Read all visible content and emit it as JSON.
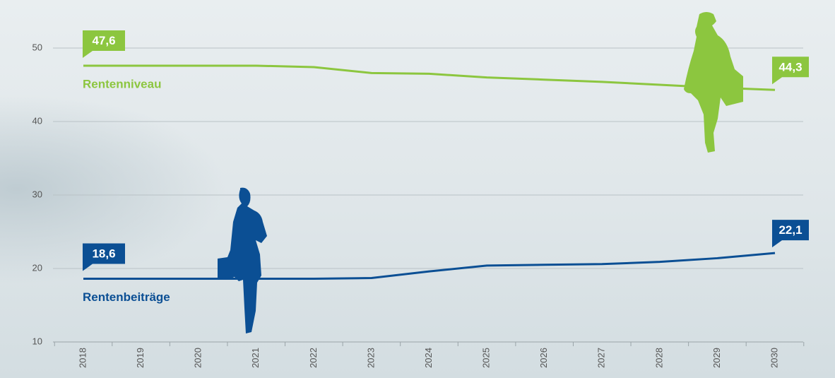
{
  "chart_data": {
    "type": "line",
    "categories": [
      "2018",
      "2019",
      "2020",
      "2021",
      "2022",
      "2023",
      "2024",
      "2025",
      "2026",
      "2027",
      "2028",
      "2029",
      "2030"
    ],
    "series": [
      {
        "name": "Rentenniveau",
        "color": "#8cc63f",
        "values": [
          47.6,
          47.6,
          47.6,
          47.6,
          47.4,
          46.6,
          46.5,
          46.0,
          45.7,
          45.4,
          45.0,
          44.6,
          44.3
        ],
        "value_labels": [
          "47,6",
          null,
          null,
          null,
          null,
          null,
          null,
          null,
          null,
          null,
          null,
          null,
          "44,3"
        ]
      },
      {
        "name": "Rentenbeiträge",
        "color": "#0b4f94",
        "values": [
          18.6,
          18.6,
          18.6,
          18.6,
          18.6,
          18.7,
          19.6,
          20.4,
          20.5,
          20.6,
          20.9,
          21.4,
          22.1
        ],
        "value_labels": [
          "18,6",
          null,
          null,
          null,
          null,
          null,
          null,
          null,
          null,
          null,
          null,
          null,
          "22,1"
        ]
      }
    ],
    "ylim": [
      10,
      50
    ],
    "yticks": [
      10,
      20,
      30,
      40,
      50
    ],
    "grid": true
  }
}
